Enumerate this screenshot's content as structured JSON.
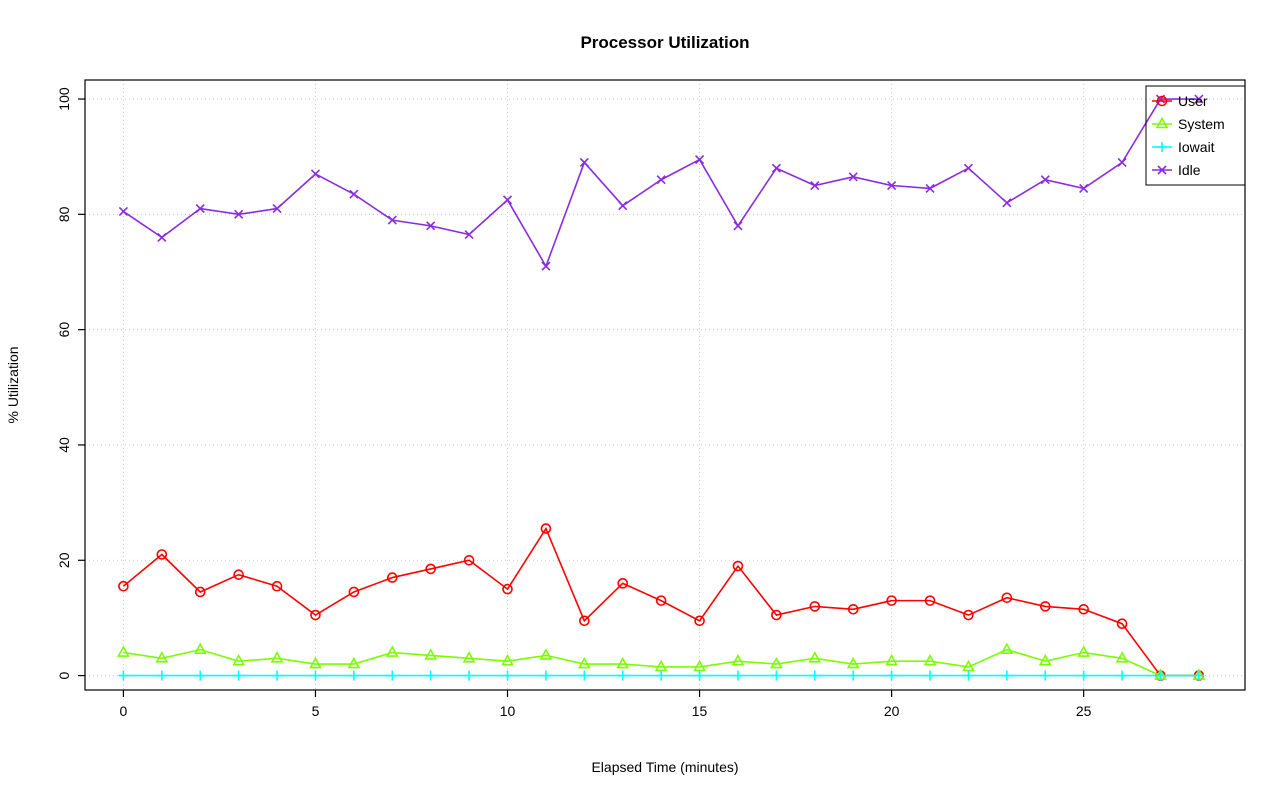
{
  "chart_data": {
    "type": "line",
    "title": "Processor Utilization",
    "xlabel": "Elapsed Time (minutes)",
    "ylabel": "% Utilization",
    "x": [
      0,
      1,
      2,
      3,
      4,
      5,
      6,
      7,
      8,
      9,
      10,
      11,
      12,
      13,
      14,
      15,
      16,
      17,
      18,
      19,
      20,
      21,
      22,
      23,
      24,
      25,
      26,
      27,
      28
    ],
    "series": [
      {
        "name": "User",
        "color": "#FF0000",
        "marker": "circle",
        "values": [
          15.5,
          21,
          14.5,
          17.5,
          15.5,
          10.5,
          14.5,
          17,
          18.5,
          20,
          15,
          25.5,
          9.5,
          16,
          13,
          9.5,
          19,
          10.5,
          12,
          11.5,
          13,
          13,
          10.5,
          13.5,
          12,
          11.5,
          9,
          0,
          0
        ]
      },
      {
        "name": "System",
        "color": "#7CFC00",
        "marker": "triangle",
        "values": [
          4,
          3,
          4.5,
          2.5,
          3,
          2,
          2,
          4,
          3.5,
          3,
          2.5,
          3.5,
          2,
          2,
          1.5,
          1.5,
          2.5,
          2,
          3,
          2,
          2.5,
          2.5,
          1.5,
          4.5,
          2.5,
          4,
          3,
          0,
          0
        ]
      },
      {
        "name": "Iowait",
        "color": "#00FFFF",
        "marker": "plus",
        "values": [
          0,
          0,
          0,
          0,
          0,
          0,
          0,
          0,
          0,
          0,
          0,
          0,
          0,
          0,
          0,
          0,
          0,
          0,
          0,
          0,
          0,
          0,
          0,
          0,
          0,
          0,
          0,
          0,
          0
        ]
      },
      {
        "name": "Idle",
        "color": "#8A2BE2",
        "marker": "x",
        "values": [
          80.5,
          76,
          81,
          80,
          81,
          87,
          83.5,
          79,
          78,
          76.5,
          82.5,
          71,
          89,
          81.5,
          86,
          89.5,
          78,
          88,
          85,
          86.5,
          85,
          84.5,
          88,
          82,
          86,
          84.5,
          89,
          100,
          100
        ]
      }
    ],
    "xticks": [
      0,
      5,
      10,
      15,
      20,
      25
    ],
    "yticks": [
      0,
      20,
      40,
      60,
      80,
      100
    ],
    "xlim": [
      -1,
      29.2
    ],
    "ylim": [
      -2.5,
      103.3
    ],
    "grid": true,
    "grid_color": "#C9C9C9",
    "legend_position": "top-right"
  }
}
